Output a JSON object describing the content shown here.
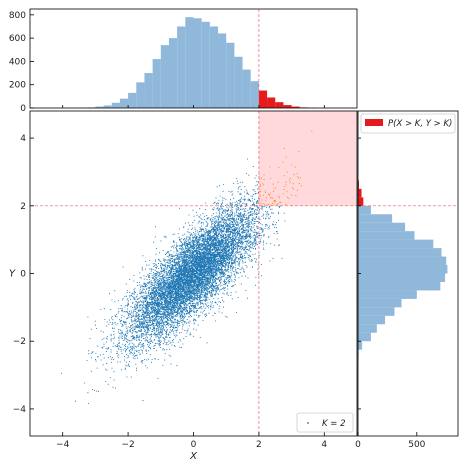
{
  "chart_data": [
    {
      "type": "scatter",
      "panel": "main",
      "xlabel": "X",
      "ylabel": "Y",
      "xlim": [
        -5,
        5
      ],
      "ylim": [
        -4.8,
        4.8
      ],
      "xticks": [
        -4,
        -2,
        0,
        2,
        4
      ],
      "yticks": [
        -4,
        -2,
        0,
        2,
        4
      ],
      "tick_labels_x": [
        "−4",
        "−2",
        "0",
        "2",
        "4"
      ],
      "tick_labels_y": [
        "−4",
        "−2",
        "0",
        "2",
        "4"
      ],
      "threshold_K": 2,
      "region": {
        "x": [
          2,
          5
        ],
        "y": [
          2,
          5
        ],
        "color": "#ffd9dc"
      },
      "threshold_line_color": "#e8626b",
      "point_color": "#1f77b4",
      "exceed_point_color": "#ff7f0e",
      "n_points": 10000,
      "correlation": 0.8,
      "mean": [
        0,
        0
      ],
      "std": [
        1,
        1
      ],
      "legend": {
        "label": "K = 2",
        "position": "lower-right"
      }
    },
    {
      "type": "bar",
      "panel": "top-marginal",
      "variable": "X",
      "xlim": [
        -5,
        5
      ],
      "ylim": [
        0,
        850
      ],
      "yticks": [
        0,
        200,
        400,
        600,
        800
      ],
      "tick_labels_y": [
        "0",
        "200",
        "400",
        "600",
        "800"
      ],
      "bin_width": 0.25,
      "bin_starts": [
        -3.5,
        -3.25,
        -3.0,
        -2.75,
        -2.5,
        -2.25,
        -2.0,
        -1.75,
        -1.5,
        -1.25,
        -1.0,
        -0.75,
        -0.5,
        -0.25,
        0.0,
        0.25,
        0.5,
        0.75,
        1.0,
        1.25,
        1.5,
        1.75,
        2.0,
        2.25,
        2.5,
        2.75,
        3.0,
        3.25,
        3.5
      ],
      "values": [
        2,
        5,
        12,
        22,
        45,
        80,
        130,
        220,
        300,
        420,
        540,
        600,
        700,
        780,
        770,
        740,
        700,
        640,
        560,
        440,
        330,
        230,
        150,
        90,
        50,
        25,
        12,
        5,
        2
      ],
      "color": "#8fb8da",
      "highlight": {
        "label": "P(X > K, Y > K)",
        "x_min": 2,
        "color": "#e41a1c"
      }
    },
    {
      "type": "bar",
      "orientation": "horizontal",
      "panel": "right-marginal",
      "variable": "Y",
      "ylim": [
        -4.8,
        4.8
      ],
      "xlim": [
        0,
        850
      ],
      "xticks": [
        0,
        500
      ],
      "tick_labels_x": [
        "0",
        "500"
      ],
      "bin_width": 0.25,
      "bin_starts": [
        -2.75,
        -2.5,
        -2.25,
        -2.0,
        -1.75,
        -1.5,
        -1.25,
        -1.0,
        -0.75,
        -0.5,
        -0.25,
        0.0,
        0.25,
        0.5,
        0.75,
        1.0,
        1.25,
        1.5,
        1.75,
        2.0,
        2.25,
        2.5
      ],
      "values": [
        2,
        5,
        35,
        110,
        160,
        230,
        310,
        370,
        500,
        700,
        740,
        760,
        750,
        710,
        640,
        480,
        400,
        290,
        110,
        45,
        30,
        8
      ],
      "color": "#8fb8da",
      "highlight": {
        "label": "P(X > K, Y > K)",
        "y_min": 2,
        "color": "#e41a1c"
      },
      "legend": {
        "label": "P(X > K, Y > K)",
        "position": "top"
      }
    }
  ]
}
